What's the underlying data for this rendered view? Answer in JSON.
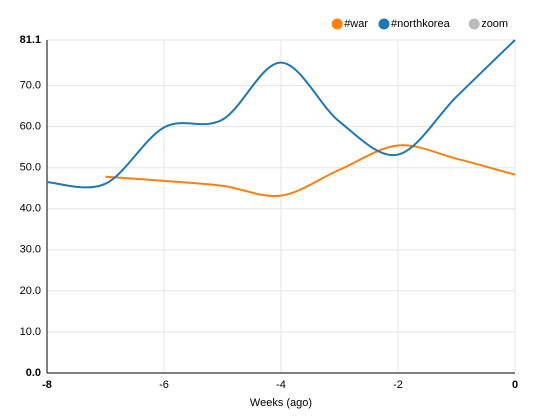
{
  "chart_data": {
    "type": "line",
    "x": [
      -8,
      -7,
      -6,
      -5,
      -4,
      -3,
      -2,
      -1,
      0
    ],
    "series": [
      {
        "name": "#war",
        "color": "#ff7f0e",
        "values": [
          null,
          47.8,
          46.8,
          45.6,
          43.2,
          49.5,
          55.4,
          52.2,
          48.3
        ]
      },
      {
        "name": "#northkorea",
        "color": "#1f77b4",
        "values": [
          46.5,
          46.1,
          59.8,
          61.7,
          75.6,
          61.2,
          53.2,
          67.3,
          81.1
        ]
      },
      {
        "name": "zoom",
        "color": "#bbbbbb",
        "disabled": true,
        "values": [
          null,
          null,
          null,
          null,
          null,
          null,
          null,
          null,
          null
        ]
      }
    ],
    "xlabel": "Weeks (ago)",
    "xlim": [
      -8,
      0
    ],
    "xticks": [
      -8,
      -6,
      -4,
      -2,
      0
    ],
    "ylim": [
      0,
      81.1
    ],
    "yticks": [
      {
        "value": 0,
        "label": "0.0"
      },
      {
        "value": 10,
        "label": "10.0"
      },
      {
        "value": 20,
        "label": "20.0"
      },
      {
        "value": 30,
        "label": "30.0"
      },
      {
        "value": 40,
        "label": "40.0"
      },
      {
        "value": 50,
        "label": "50.0"
      },
      {
        "value": 60,
        "label": "60.0"
      },
      {
        "value": 70,
        "label": "70.0"
      },
      81.1
    ],
    "grid": true,
    "legend": "top-right"
  }
}
